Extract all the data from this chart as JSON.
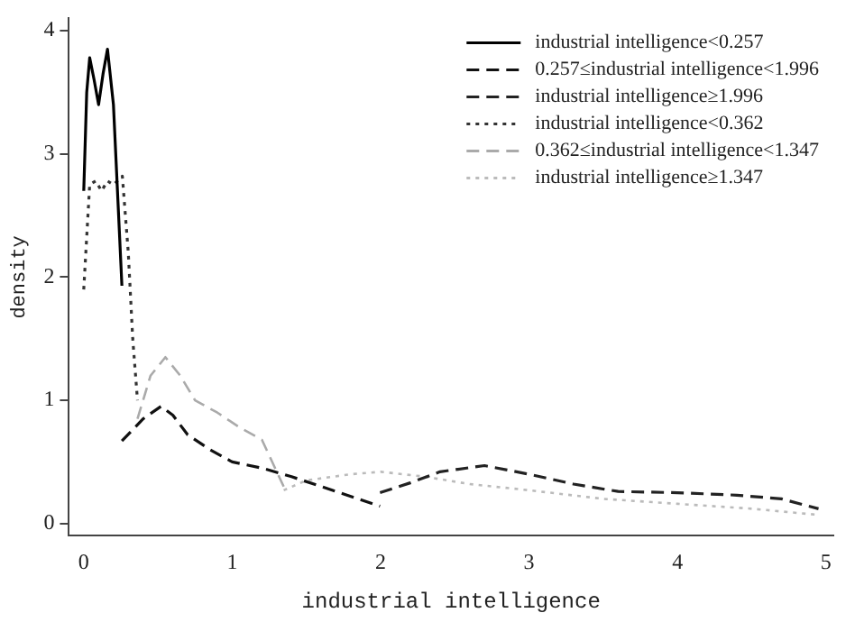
{
  "chart_data": {
    "type": "line",
    "xlabel": "industrial intelligence",
    "ylabel": "density",
    "xlim": [
      -0.1,
      5.05
    ],
    "ylim": [
      -0.1,
      4.1
    ],
    "xticks": [
      0,
      1,
      2,
      3,
      4,
      5
    ],
    "yticks": [
      0,
      1,
      2,
      3,
      4
    ],
    "grid": false,
    "legend": "top right",
    "marker": "none",
    "series": [
      {
        "name": "industrial intelligence<0.257",
        "color": "#000000",
        "line_style": "solid",
        "x": [
          0,
          0.02,
          0.04,
          0.07,
          0.1,
          0.13,
          0.16,
          0.2,
          0.257
        ],
        "values": [
          2.7,
          3.5,
          3.78,
          3.6,
          3.4,
          3.65,
          3.85,
          3.4,
          1.93
        ]
      },
      {
        "name": "0.257≤industrial intelligence<1.996",
        "color": "#111111",
        "line_style": "dashed",
        "x": [
          0.257,
          0.4,
          0.52,
          0.6,
          0.7,
          0.85,
          1.0,
          1.2,
          1.4,
          1.6,
          1.8,
          1.996
        ],
        "values": [
          0.67,
          0.85,
          0.95,
          0.88,
          0.72,
          0.6,
          0.5,
          0.45,
          0.38,
          0.3,
          0.22,
          0.14
        ]
      },
      {
        "name": "industrial intelligence≥1.996",
        "color": "#222222",
        "line_style": "dashed",
        "x": [
          1.996,
          2.2,
          2.4,
          2.7,
          3.0,
          3.3,
          3.6,
          4.0,
          4.4,
          4.7,
          4.95
        ],
        "values": [
          0.25,
          0.33,
          0.42,
          0.47,
          0.4,
          0.32,
          0.26,
          0.25,
          0.23,
          0.2,
          0.12
        ]
      },
      {
        "name": "industrial intelligence<0.362",
        "color": "#333333",
        "line_style": "dotted",
        "x": [
          0,
          0.04,
          0.08,
          0.12,
          0.16,
          0.2,
          0.26,
          0.3,
          0.33,
          0.362
        ],
        "values": [
          1.9,
          2.75,
          2.78,
          2.7,
          2.78,
          2.75,
          2.82,
          2.2,
          1.5,
          1.0
        ]
      },
      {
        "name": "0.362≤industrial intelligence<1.347",
        "color": "#aaaaaa",
        "line_style": "dashed",
        "x": [
          0.362,
          0.45,
          0.55,
          0.65,
          0.75,
          0.9,
          1.05,
          1.2,
          1.347
        ],
        "values": [
          0.85,
          1.2,
          1.35,
          1.2,
          1.0,
          0.9,
          0.78,
          0.68,
          0.3
        ]
      },
      {
        "name": "industrial intelligence≥1.347",
        "color": "#bbbbbb",
        "line_style": "dotted",
        "x": [
          1.347,
          1.5,
          1.8,
          2.0,
          2.3,
          2.6,
          3.0,
          3.5,
          4.0,
          4.5,
          4.95
        ],
        "values": [
          0.27,
          0.35,
          0.4,
          0.42,
          0.38,
          0.32,
          0.27,
          0.2,
          0.16,
          0.12,
          0.07
        ]
      }
    ]
  }
}
